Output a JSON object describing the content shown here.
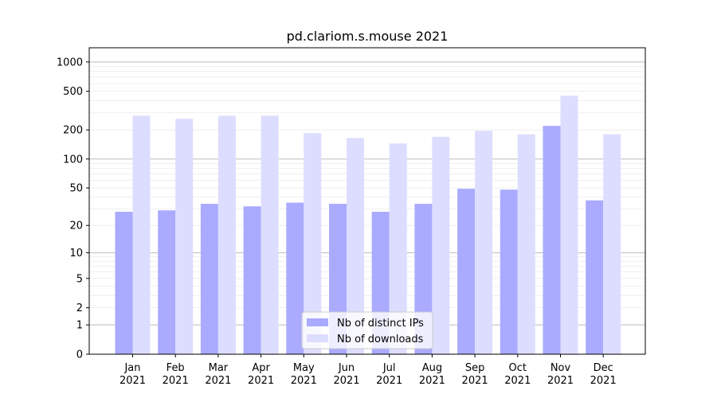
{
  "chart_data": {
    "type": "bar",
    "title": "pd.clariom.s.mouse 2021",
    "xlabel": "",
    "ylabel": "",
    "categories": [
      {
        "month": "Jan",
        "year": "2021"
      },
      {
        "month": "Feb",
        "year": "2021"
      },
      {
        "month": "Mar",
        "year": "2021"
      },
      {
        "month": "Apr",
        "year": "2021"
      },
      {
        "month": "May",
        "year": "2021"
      },
      {
        "month": "Jun",
        "year": "2021"
      },
      {
        "month": "Jul",
        "year": "2021"
      },
      {
        "month": "Aug",
        "year": "2021"
      },
      {
        "month": "Sep",
        "year": "2021"
      },
      {
        "month": "Oct",
        "year": "2021"
      },
      {
        "month": "Nov",
        "year": "2021"
      },
      {
        "month": "Dec",
        "year": "2021"
      }
    ],
    "series": [
      {
        "name": "Nb of distinct IPs",
        "color": "#aaaaff",
        "values": [
          28,
          29,
          34,
          32,
          35,
          34,
          28,
          34,
          49,
          48,
          220,
          37
        ]
      },
      {
        "name": "Nb of downloads",
        "color": "#ddddff",
        "values": [
          280,
          260,
          280,
          280,
          185,
          165,
          145,
          170,
          195,
          180,
          450,
          180
        ]
      }
    ],
    "y_scale": "log(1+y)",
    "y_ticks": [
      0,
      1,
      2,
      5,
      10,
      20,
      50,
      100,
      200,
      500,
      1000
    ],
    "ylim": [
      0,
      1400
    ],
    "grid": true,
    "legend_position": "lower-center"
  }
}
